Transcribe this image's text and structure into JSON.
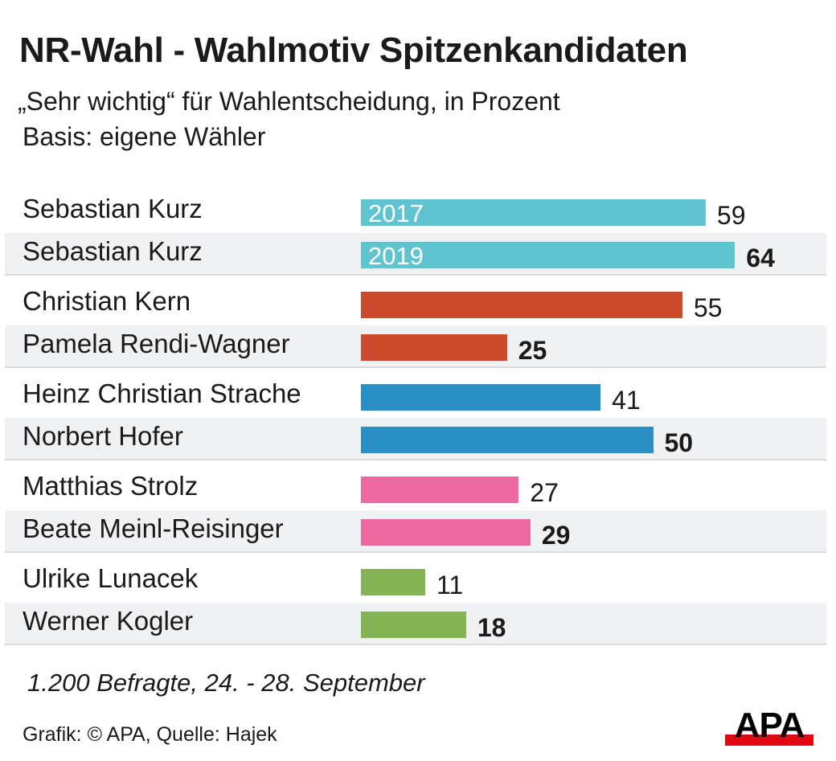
{
  "chart_data": {
    "type": "bar",
    "orientation": "horizontal",
    "title": "NR-Wahl - Wahlmotiv Spitzenkandidaten",
    "subtitle": "„Sehr wichtig“ für Wahlentscheidung, in Prozent",
    "subtitle2": "Basis: eigene Wähler",
    "xlim": [
      0,
      100
    ],
    "bars": [
      {
        "label": "Sebastian Kurz",
        "value": 59,
        "bar_label": "2017",
        "color": "#5fc4d0",
        "bold": false
      },
      {
        "label": "Sebastian Kurz",
        "value": 64,
        "bar_label": "2019",
        "color": "#5fc4d0",
        "bold": true
      },
      {
        "label": "Christian Kern",
        "value": 55,
        "color": "#cc4a2c",
        "bold": false
      },
      {
        "label": "Pamela Rendi-Wagner",
        "value": 25,
        "color": "#cc4a2c",
        "bold": true
      },
      {
        "label": "Heinz Christian Strache",
        "value": 41,
        "color": "#2a8fc4",
        "bold": false
      },
      {
        "label": "Norbert Hofer",
        "value": 50,
        "color": "#2a8fc4",
        "bold": true
      },
      {
        "label": "Matthias Strolz",
        "value": 27,
        "color": "#ec6aa0",
        "bold": false
      },
      {
        "label": "Beate Meinl-Reisinger",
        "value": 29,
        "color": "#ec6aa0",
        "bold": true
      },
      {
        "label": "Ulrike Lunacek",
        "value": 11,
        "color": "#84b455",
        "bold": false
      },
      {
        "label": "Werner Kogler",
        "value": 18,
        "color": "#84b455",
        "bold": true
      }
    ],
    "note": "1.200 Befragte, 24. - 28. September",
    "credit": "Grafik: © APA, Quelle: Hajek",
    "logo": "APA"
  }
}
